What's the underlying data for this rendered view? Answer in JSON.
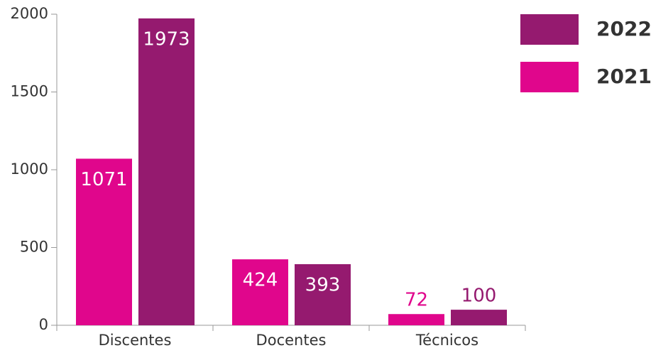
{
  "chart_data": {
    "type": "bar",
    "categories": [
      "Discentes",
      "Docentes",
      "Técnicos"
    ],
    "series": [
      {
        "name": "2021",
        "color": "#e0068c",
        "values": [
          1071,
          424,
          72
        ]
      },
      {
        "name": "2022",
        "color": "#951a6f",
        "values": [
          1973,
          393,
          100
        ]
      }
    ],
    "ylim": [
      0,
      2000
    ],
    "yticks": [
      0,
      500,
      1000,
      1500,
      2000
    ],
    "legend": "top-right"
  }
}
